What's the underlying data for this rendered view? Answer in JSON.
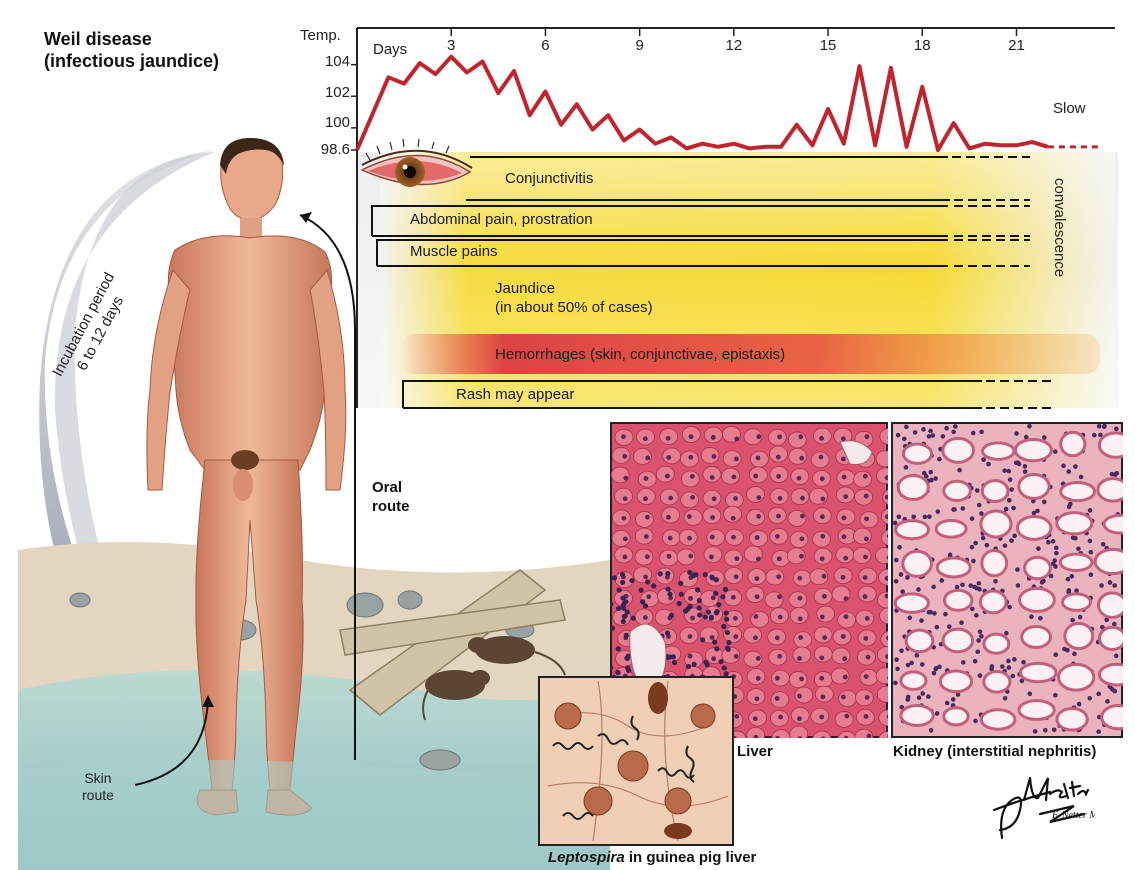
{
  "title_line1": "Weil disease",
  "title_line2": "(infectious jaundice)",
  "chart_data": {
    "type": "line",
    "ylabel": "Temp.",
    "xlabel": "Days",
    "x_ticks": [
      3,
      6,
      9,
      12,
      15,
      18,
      21
    ],
    "y_ticks": [
      "104",
      "102",
      "100",
      "98.6"
    ],
    "ylim": [
      98.6,
      104.8
    ],
    "xlim": [
      0,
      23.5
    ],
    "x": [
      0,
      1,
      1.5,
      2,
      2.5,
      3,
      3.5,
      4,
      4.5,
      5,
      5.5,
      6,
      6.5,
      7,
      7.5,
      8,
      8.5,
      9,
      9.5,
      10,
      10.5,
      11,
      11.5,
      12,
      12.5,
      13,
      13.5,
      14,
      14.5,
      15,
      15.5,
      16,
      16.5,
      17,
      17.5,
      18,
      18.5,
      19,
      19.5,
      20,
      20.5,
      21,
      21.5,
      22
    ],
    "y": [
      98.6,
      103.2,
      102.8,
      104.1,
      103.4,
      104.5,
      103.5,
      104.2,
      102.2,
      103.6,
      100.8,
      102.3,
      100.2,
      101.5,
      99.9,
      100.8,
      99.2,
      99.9,
      99.0,
      99.4,
      98.7,
      99.0,
      98.8,
      99.0,
      98.7,
      98.8,
      98.8,
      100.2,
      98.9,
      101.2,
      99.0,
      103.9,
      98.9,
      103.8,
      98.8,
      102.6,
      98.6,
      100.3,
      98.7,
      99.0,
      98.9,
      98.9,
      99.1,
      98.8
    ],
    "line_color": "#c0242c"
  },
  "symptoms": {
    "conjunctivitis": "Conjunctivitis",
    "abdominal": "Abdominal pain, prostration",
    "muscle": "Muscle pains",
    "jaundice_line1": "Jaundice",
    "jaundice_line2": "(in about 50% of cases)",
    "hemorrhages": "Hemorrhages (skin, conjunctivae, epistaxis)",
    "rash": "Rash may appear"
  },
  "convalescence_line1": "Slow",
  "convalescence_line2": "convalescence",
  "incubation_line1": "Incubation period",
  "incubation_line2": "6 to 12 days",
  "oral_route_line1": "Oral",
  "oral_route_line2": "route",
  "skin_route_line1": "Skin",
  "skin_route_line2": "route",
  "captions": {
    "liver": "Liver",
    "kidney": "Kidney (interstitial nephritis)",
    "leptospira_italic": "Leptospira",
    "leptospira_rest": " in guinea pig liver"
  },
  "signature": "F. Netter M.D.",
  "colors": {
    "yellow_band": "#f7d92a",
    "hemorrhage": "#d9263f",
    "liver_tissue": "#d9536e",
    "kidney_tissue": "#e7a7b4",
    "skin": "#e8a889",
    "water": "#9fc9c7"
  }
}
